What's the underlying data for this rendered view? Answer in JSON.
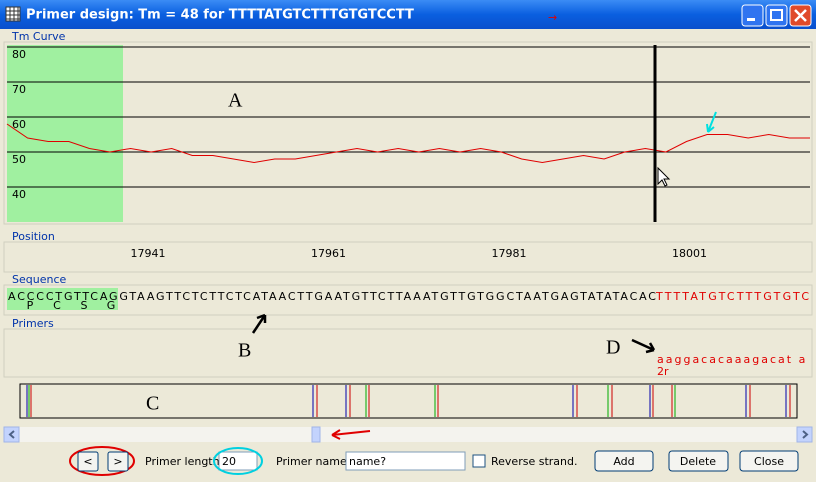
{
  "window": {
    "title": "Primer design: Tm = 48 for TTTTATGTCTTTGTGTCCTT"
  },
  "tm_curve": {
    "label": "Tm Curve",
    "ylim": [
      30,
      80
    ],
    "yticks": [
      40,
      50,
      60,
      70,
      80
    ],
    "values": [
      58,
      54,
      53,
      53,
      51,
      50,
      51,
      50,
      51,
      49,
      49,
      48,
      47,
      48,
      48,
      49,
      50,
      51,
      50,
      51,
      50,
      51,
      50,
      51,
      50,
      48,
      47,
      48,
      49,
      48,
      50,
      51,
      50,
      53,
      55,
      55,
      54,
      55,
      54,
      54
    ],
    "color": "#e00000",
    "annotation": "A"
  },
  "position": {
    "label": "Position",
    "ticks": [
      17941,
      17961,
      17981,
      18001
    ]
  },
  "sequence": {
    "label": "Sequence",
    "matched": "ACCCCTGTTCAGGTAAGTTCTCTTCTCATAACTTGAATGTTCTTAAATGTTGTGGCTAATGAGTATATACAC",
    "primer": "TTTTATGTCTTTGTGTC",
    "markers": [
      "P",
      "C",
      "S",
      "G"
    ]
  },
  "primers": {
    "label": "Primers",
    "annotations": [
      "B",
      "D"
    ],
    "primer_seq": "aaggacacaaagacat a",
    "primer_name": "2r"
  },
  "overview": {
    "annotation": "C"
  },
  "controls": {
    "prev": "<",
    "next": ">",
    "length_label": "Primer length.",
    "length_value": "20",
    "name_label": "Primer name.",
    "name_value": "name?",
    "reverse_label": "Reverse strand.",
    "add": "Add",
    "delete": "Delete",
    "close": "Close"
  }
}
